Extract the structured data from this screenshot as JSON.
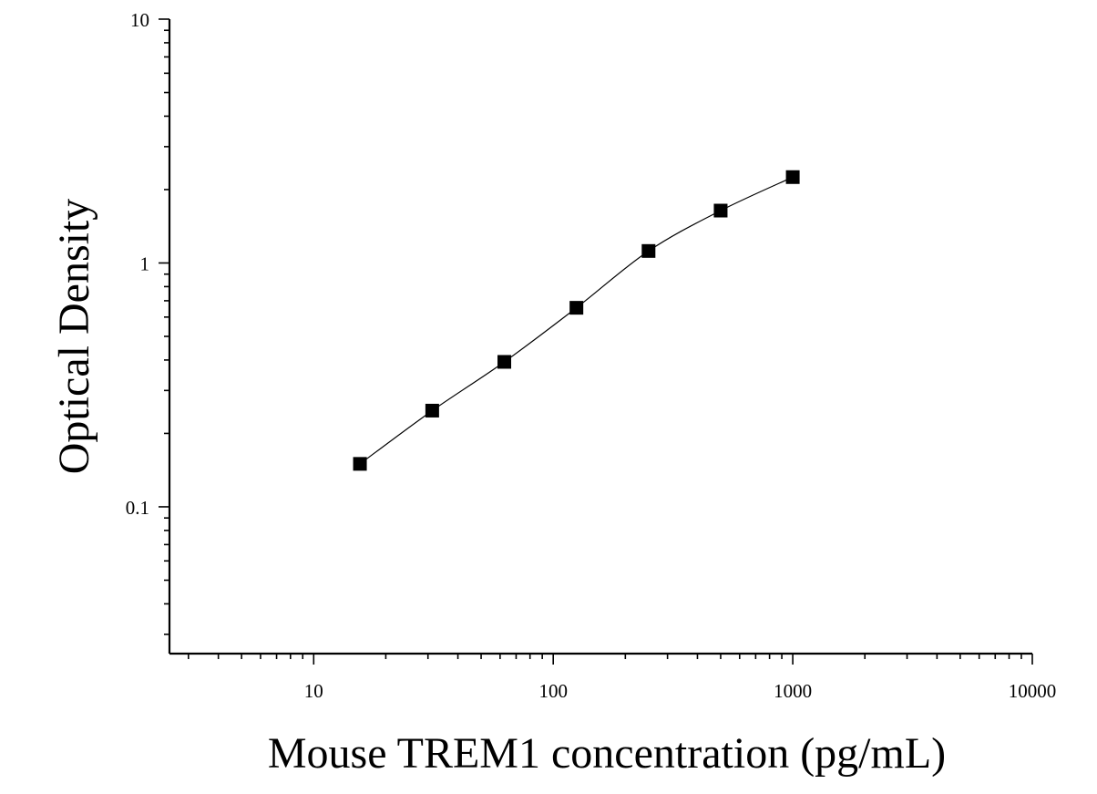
{
  "chart_data": {
    "type": "scatter",
    "xlabel": "Mouse TREM1 concentration (pg/mL)",
    "ylabel": "Optical Density",
    "xscale": "log",
    "yscale": "log",
    "xlim": [
      2.5,
      10000
    ],
    "ylim": [
      0.025,
      10
    ],
    "x_tick_labels": [
      "10",
      "100",
      "1000",
      "10000"
    ],
    "y_tick_labels": [
      "0.1",
      "1",
      "10"
    ],
    "grid": false,
    "legend": "none",
    "points": {
      "x": [
        15.6,
        31.25,
        62.5,
        125,
        250,
        500,
        1000
      ],
      "y": [
        0.15,
        0.248,
        0.393,
        0.655,
        1.12,
        1.64,
        2.25
      ]
    },
    "fit_curve": true,
    "colors": {
      "points": "#000000",
      "line": "#000000"
    }
  }
}
